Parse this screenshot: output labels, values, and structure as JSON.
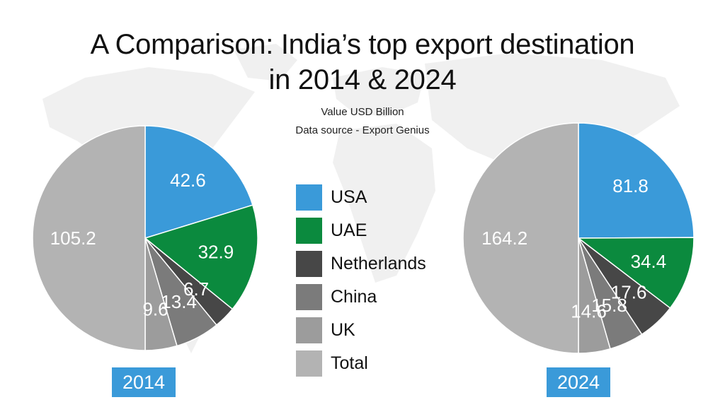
{
  "title_line1": "A Comparison: India’s top export destination",
  "title_line2": "in 2014 & 2024",
  "subtitle1": "Value USD Billion",
  "subtitle2": "Data source - Export Genius",
  "legend": [
    {
      "label": "USA",
      "color": "#3a9ad9"
    },
    {
      "label": "UAE",
      "color": "#0b8a3e"
    },
    {
      "label": "Netherlands",
      "color": "#474747"
    },
    {
      "label": "China",
      "color": "#7b7b7b"
    },
    {
      "label": "UK",
      "color": "#9c9c9c"
    },
    {
      "label": "Total",
      "color": "#b3b3b3"
    }
  ],
  "colors": {
    "map": "#f0f0f0",
    "year_badge": "#3a9ad9"
  },
  "chart_data": [
    {
      "type": "pie",
      "label": "2014",
      "categories": [
        "USA",
        "UAE",
        "Netherlands",
        "China",
        "UK",
        "Total"
      ],
      "values": [
        42.6,
        32.9,
        6.7,
        13.4,
        9.6,
        105.2
      ],
      "colors": [
        "#3a9ad9",
        "#0b8a3e",
        "#474747",
        "#7b7b7b",
        "#9c9c9c",
        "#b3b3b3"
      ]
    },
    {
      "type": "pie",
      "label": "2024",
      "categories": [
        "USA",
        "UAE",
        "Netherlands",
        "China",
        "UK",
        "Total"
      ],
      "values": [
        81.8,
        34.4,
        17.6,
        15.8,
        14.6,
        164.2
      ],
      "colors": [
        "#3a9ad9",
        "#0b8a3e",
        "#474747",
        "#7b7b7b",
        "#9c9c9c",
        "#b3b3b3"
      ]
    }
  ]
}
